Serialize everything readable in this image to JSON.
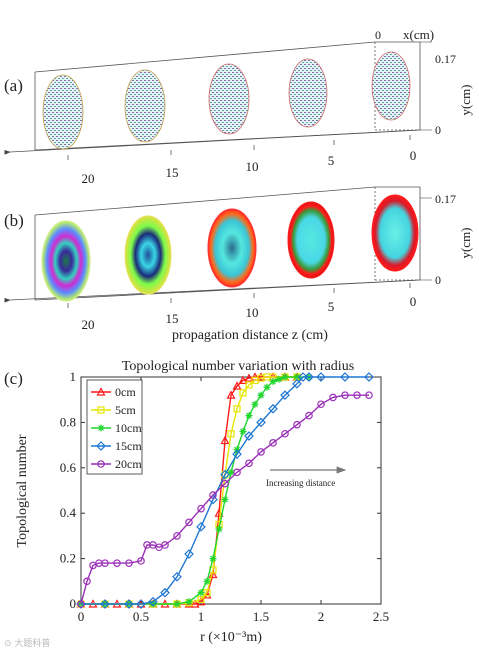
{
  "panels": {
    "a": {
      "label": "(a)",
      "z_ticks": [
        "20",
        "15",
        "10",
        "5",
        "0"
      ],
      "x_label": "x(cm)",
      "x_tick": "0",
      "y_label": "y(cm)",
      "y_ticks": [
        "0.17",
        "0"
      ]
    },
    "b": {
      "label": "(b)",
      "z_ticks": [
        "20",
        "15",
        "10",
        "5",
        "0"
      ],
      "y_label": "y(cm)",
      "y_ticks": [
        "0.17",
        "0"
      ],
      "z_label": "propagation distance z (cm)"
    }
  },
  "chart_data": {
    "panel_label": "(c)",
    "type": "line",
    "title": "Topological number variation with radius",
    "xlabel": "r (×10⁻³m)",
    "ylabel": "Topological number",
    "xlim": [
      0,
      2.5
    ],
    "ylim": [
      0,
      1
    ],
    "x_ticks": [
      "0",
      "0.5",
      "1",
      "1.5",
      "2",
      "2.5"
    ],
    "y_ticks": [
      "0",
      "0.2",
      "0.4",
      "0.6",
      "0.8",
      "1"
    ],
    "grid": false,
    "legend_position": "top-left",
    "annotation": "Increasing distance",
    "series": [
      {
        "name": "0cm",
        "color": "#ff1a1a",
        "marker": "triangle",
        "x": [
          0,
          0.1,
          0.2,
          0.3,
          0.4,
          0.5,
          0.6,
          0.7,
          0.8,
          0.9,
          0.95,
          1.0,
          1.05,
          1.1,
          1.15,
          1.2,
          1.25,
          1.3,
          1.35,
          1.4,
          1.45,
          1.5,
          1.6,
          1.7,
          1.8
        ],
        "y": [
          0,
          0,
          0,
          0,
          0,
          0,
          0,
          0,
          0,
          0,
          0,
          0.01,
          0.04,
          0.13,
          0.4,
          0.72,
          0.92,
          0.96,
          0.985,
          0.995,
          1,
          1,
          1,
          1,
          1
        ]
      },
      {
        "name": "5cm",
        "color": "#e6e600",
        "marker": "square",
        "x": [
          0,
          0.2,
          0.4,
          0.6,
          0.8,
          0.9,
          1.0,
          1.05,
          1.1,
          1.15,
          1.2,
          1.25,
          1.3,
          1.35,
          1.4,
          1.45,
          1.5,
          1.55,
          1.6,
          1.7,
          1.8
        ],
        "y": [
          0,
          0,
          0,
          0,
          0,
          0.005,
          0.02,
          0.05,
          0.15,
          0.35,
          0.57,
          0.75,
          0.86,
          0.93,
          0.965,
          0.985,
          0.995,
          1,
          1,
          1,
          1
        ]
      },
      {
        "name": "10cm",
        "color": "#1fd62f",
        "marker": "star",
        "x": [
          0,
          0.2,
          0.4,
          0.6,
          0.8,
          0.9,
          1.0,
          1.05,
          1.1,
          1.15,
          1.2,
          1.25,
          1.3,
          1.35,
          1.4,
          1.45,
          1.5,
          1.55,
          1.6,
          1.65,
          1.7,
          1.8,
          1.9
        ],
        "y": [
          0,
          0,
          0,
          0,
          0,
          0.01,
          0.05,
          0.1,
          0.2,
          0.33,
          0.46,
          0.58,
          0.68,
          0.76,
          0.83,
          0.88,
          0.92,
          0.955,
          0.98,
          0.99,
          1,
          1,
          1
        ]
      },
      {
        "name": "15cm",
        "color": "#1f77d4",
        "marker": "diamond",
        "x": [
          0,
          0.2,
          0.4,
          0.5,
          0.6,
          0.7,
          0.8,
          0.9,
          1.0,
          1.1,
          1.2,
          1.3,
          1.4,
          1.5,
          1.6,
          1.7,
          1.8,
          1.85,
          1.9,
          2.0,
          2.2,
          2.4
        ],
        "y": [
          0,
          0,
          0,
          0,
          0.01,
          0.05,
          0.12,
          0.22,
          0.34,
          0.46,
          0.57,
          0.66,
          0.74,
          0.8,
          0.86,
          0.92,
          0.97,
          1,
          1,
          1,
          1,
          1
        ]
      },
      {
        "name": "20cm",
        "color": "#9b2fb8",
        "marker": "circle",
        "x": [
          0,
          0.05,
          0.1,
          0.15,
          0.2,
          0.3,
          0.4,
          0.5,
          0.55,
          0.6,
          0.65,
          0.7,
          0.8,
          0.9,
          1.0,
          1.1,
          1.2,
          1.3,
          1.4,
          1.5,
          1.6,
          1.7,
          1.8,
          1.9,
          2.0,
          2.1,
          2.2,
          2.3,
          2.4
        ],
        "y": [
          0,
          0.1,
          0.17,
          0.18,
          0.18,
          0.18,
          0.18,
          0.19,
          0.26,
          0.26,
          0.25,
          0.26,
          0.3,
          0.36,
          0.42,
          0.48,
          0.53,
          0.58,
          0.62,
          0.67,
          0.71,
          0.75,
          0.79,
          0.83,
          0.88,
          0.91,
          0.92,
          0.92,
          0.92
        ]
      }
    ]
  }
}
